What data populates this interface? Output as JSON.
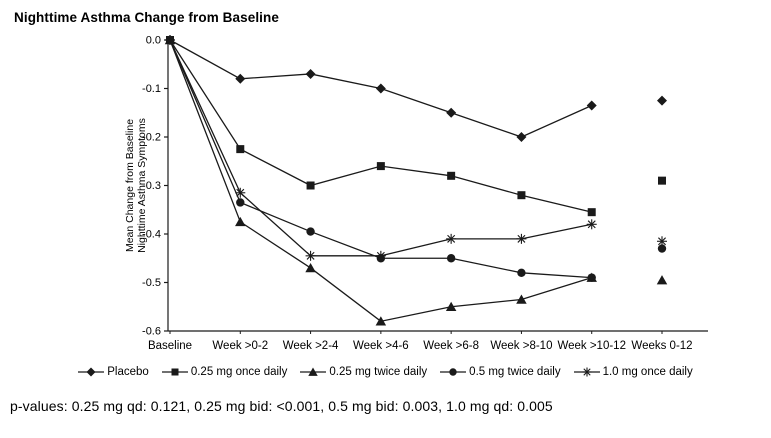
{
  "title": "Nighttime Asthma Change from Baseline",
  "footer": "p-values: 0.25 mg qd: 0.121, 0.25 mg bid: <0.001, 0.5 mg bid: 0.003, 1.0 mg qd: 0.005",
  "colors": {
    "line": "#1a1a1a",
    "text": "#000000",
    "background": "#ffffff"
  },
  "chart_data": {
    "type": "line",
    "title": "Nighttime Asthma Change from Baseline",
    "ylabel_lines": [
      "Mean Change from Baseline",
      "Nighttime Asthma Symptoms"
    ],
    "categories": [
      "Baseline",
      "Week >0-2",
      "Week >2-4",
      "Week >4-6",
      "Week >6-8",
      "Week >8-10",
      "Week >10-12",
      "Weeks 0-12"
    ],
    "ylim": [
      -0.6,
      0.0
    ],
    "yticks": [
      0.0,
      -0.1,
      -0.2,
      -0.3,
      -0.4,
      -0.5,
      -0.6
    ],
    "grid": false,
    "legend_position": "bottom",
    "note": "Weeks 0-12 column shows the overall mean as a detached marker (no connecting line)",
    "series": [
      {
        "name": "Placebo",
        "marker": "diamond",
        "values": [
          0.0,
          -0.08,
          -0.07,
          -0.1,
          -0.15,
          -0.2,
          -0.135
        ],
        "overall": -0.125
      },
      {
        "name": "0.25 mg once daily",
        "marker": "square",
        "values": [
          0.0,
          -0.225,
          -0.3,
          -0.26,
          -0.28,
          -0.32,
          -0.355
        ],
        "overall": -0.29
      },
      {
        "name": "0.25 mg twice daily",
        "marker": "triangle",
        "values": [
          0.0,
          -0.375,
          -0.47,
          -0.58,
          -0.55,
          -0.535,
          -0.49
        ],
        "overall": -0.495
      },
      {
        "name": "0.5 mg twice daily",
        "marker": "circle",
        "values": [
          0.0,
          -0.335,
          -0.395,
          -0.45,
          -0.45,
          -0.48,
          -0.49
        ],
        "overall": -0.43
      },
      {
        "name": "1.0 mg once daily",
        "marker": "asterisk",
        "values": [
          0.0,
          -0.315,
          -0.445,
          -0.445,
          -0.41,
          -0.41,
          -0.38
        ],
        "overall": -0.415
      }
    ]
  }
}
